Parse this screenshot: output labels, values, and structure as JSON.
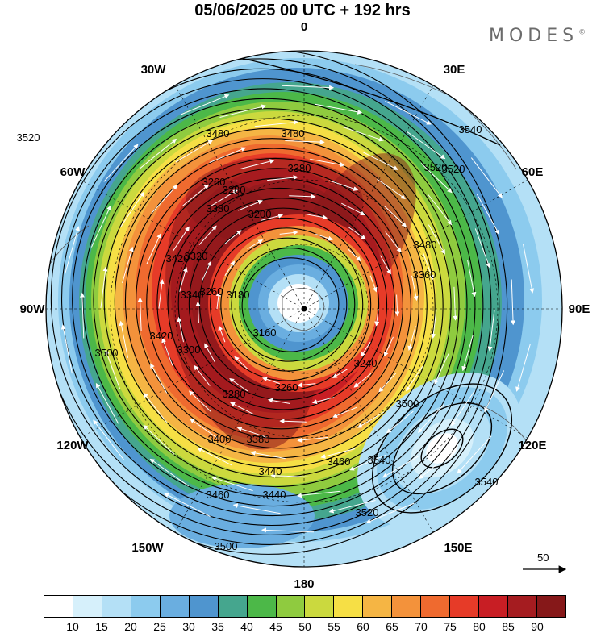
{
  "header": {
    "title": "05/06/2025  00 UTC  + 192 hrs",
    "brand": "MODES"
  },
  "longitudes": [
    "0",
    "30E",
    "60E",
    "90E",
    "120E",
    "150E",
    "180",
    "150W",
    "120W",
    "90W",
    "60W",
    "30W"
  ],
  "scale_arrow": {
    "label": "50"
  },
  "colorbar": {
    "labels": [
      "10",
      "15",
      "20",
      "25",
      "30",
      "35",
      "40",
      "45",
      "50",
      "55",
      "60",
      "65",
      "70",
      "75",
      "80",
      "85",
      "90"
    ],
    "colors": [
      "#ffffff",
      "#d6f0fb",
      "#b4e0f6",
      "#8ccbee",
      "#6aaee0",
      "#4f95cf",
      "#45a68e",
      "#4cb848",
      "#8fcb3f",
      "#cbd93e",
      "#f6df45",
      "#f5b544",
      "#f3923b",
      "#ef6a2f",
      "#e63b28",
      "#c81e24",
      "#a51c20",
      "#861819"
    ]
  },
  "contours": {
    "labels": [
      "3540",
      "3540",
      "3520",
      "3520",
      "3500",
      "3480",
      "3480",
      "3460",
      "3440",
      "3420",
      "3420",
      "3400",
      "3380",
      "3380",
      "3340",
      "3320",
      "3300",
      "3280",
      "3280",
      "3260",
      "3260",
      "3240",
      "3200",
      "3180",
      "3160",
      "3520",
      "3500",
      "3540",
      "3520",
      "3500",
      "3480",
      "3460",
      "3440",
      "3380",
      "3360",
      "3260"
    ]
  }
}
